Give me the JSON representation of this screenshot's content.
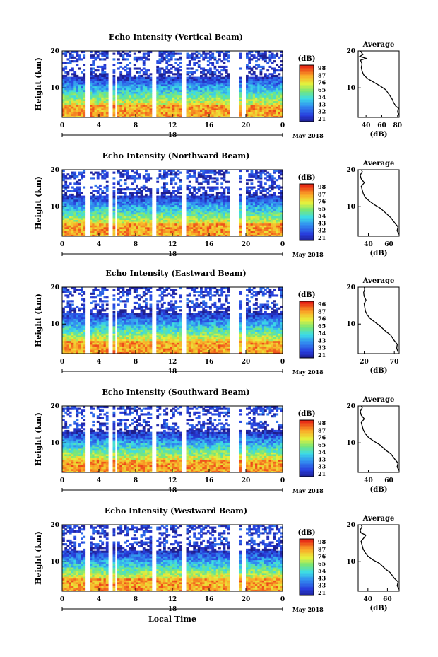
{
  "global": {
    "x_label": "Local Time",
    "date_suffix": "May 2018",
    "cbar_unit": "(dB)",
    "avg_title": "Average",
    "avg_unit": "(dB)",
    "y_label": "Height (km)"
  },
  "chart_data": [
    {
      "type": "heatmap",
      "title": "Echo Intensity (Vertical Beam)",
      "xlabel": "Local Time",
      "ylabel": "Height (km)",
      "x_ticks": [
        "0",
        "4",
        "8",
        "12",
        "16",
        "20",
        "0"
      ],
      "x_range": [
        0,
        24
      ],
      "date_label": "18",
      "y_ticks": [
        "20",
        "10"
      ],
      "y_range": [
        2,
        20
      ],
      "colorbar": {
        "label": "(dB)",
        "ticks": [
          "98",
          "87",
          "76",
          "65",
          "54",
          "43",
          "32",
          "21"
        ]
      },
      "average": {
        "title": "Average",
        "xlabel": "(dB)",
        "x_ticks": [
          "40",
          "60",
          "80"
        ],
        "x_range": [
          30,
          82
        ],
        "profile": [
          [
            82,
            2.5
          ],
          [
            80,
            3.5
          ],
          [
            81,
            4.5
          ],
          [
            78,
            5
          ],
          [
            75,
            6
          ],
          [
            73,
            7
          ],
          [
            70,
            8
          ],
          [
            65,
            9.5
          ],
          [
            58,
            10.5
          ],
          [
            50,
            11.5
          ],
          [
            42,
            12.5
          ],
          [
            37,
            13.5
          ],
          [
            35,
            14.5
          ],
          [
            34,
            15.5
          ],
          [
            35,
            16.5
          ],
          [
            33,
            17.5
          ],
          [
            40,
            18
          ],
          [
            32,
            18.5
          ],
          [
            36,
            19
          ],
          [
            33,
            20
          ]
        ]
      }
    },
    {
      "type": "heatmap",
      "title": "Echo Intensity (Northward Beam)",
      "xlabel": "Local Time",
      "ylabel": "Height (km)",
      "x_ticks": [
        "0",
        "4",
        "8",
        "12",
        "16",
        "20",
        "0"
      ],
      "x_range": [
        0,
        24
      ],
      "date_label": "18",
      "y_ticks": [
        "20",
        "10"
      ],
      "y_range": [
        2,
        20
      ],
      "colorbar": {
        "label": "(dB)",
        "ticks": [
          "98",
          "87",
          "76",
          "65",
          "54",
          "43",
          "32",
          "21"
        ]
      },
      "average": {
        "title": "Average",
        "xlabel": "(dB)",
        "x_ticks": [
          "40",
          "60"
        ],
        "x_range": [
          30,
          70
        ],
        "profile": [
          [
            70,
            2.5
          ],
          [
            68,
            3.5
          ],
          [
            69,
            4.5
          ],
          [
            66,
            5.5
          ],
          [
            62,
            7
          ],
          [
            58,
            8
          ],
          [
            52,
            9.5
          ],
          [
            46,
            10.5
          ],
          [
            41,
            11.5
          ],
          [
            37,
            12.5
          ],
          [
            35,
            13.5
          ],
          [
            34,
            14.5
          ],
          [
            33,
            15.5
          ],
          [
            36,
            16.5
          ],
          [
            33,
            17.5
          ],
          [
            32,
            18.5
          ],
          [
            34,
            19.5
          ],
          [
            33,
            20
          ]
        ]
      }
    },
    {
      "type": "heatmap",
      "title": "Echo Intensity (Eastward Beam)",
      "xlabel": "Local Time",
      "ylabel": "Height (km)",
      "x_ticks": [
        "0",
        "4",
        "8",
        "12",
        "16",
        "20",
        "0"
      ],
      "x_range": [
        0,
        24
      ],
      "date_label": "18",
      "y_ticks": [
        "20",
        "10"
      ],
      "y_range": [
        2,
        20
      ],
      "colorbar": {
        "label": "(dB)",
        "ticks": [
          "96",
          "87",
          "76",
          "65",
          "54",
          "43",
          "33",
          "21"
        ]
      },
      "average": {
        "title": "Average",
        "xlabel": "(dB)",
        "x_ticks": [
          "20",
          "70"
        ],
        "x_range": [
          10,
          78
        ],
        "profile": [
          [
            76,
            2.5
          ],
          [
            74,
            3.5
          ],
          [
            75,
            4.5
          ],
          [
            70,
            5.5
          ],
          [
            64,
            7
          ],
          [
            56,
            8
          ],
          [
            46,
            9.5
          ],
          [
            38,
            10.5
          ],
          [
            30,
            11.5
          ],
          [
            25,
            12.5
          ],
          [
            22,
            13.5
          ],
          [
            21,
            14.5
          ],
          [
            20,
            15.5
          ],
          [
            23,
            16.5
          ],
          [
            20,
            17.5
          ],
          [
            19,
            18.5
          ],
          [
            21,
            19.5
          ],
          [
            20,
            20
          ]
        ]
      }
    },
    {
      "type": "heatmap",
      "title": "Echo Intensity (Southward Beam)",
      "xlabel": "Local Time",
      "ylabel": "Height (km)",
      "x_ticks": [
        "0",
        "4",
        "8",
        "12",
        "16",
        "20",
        "0"
      ],
      "x_range": [
        0,
        24
      ],
      "date_label": "18",
      "y_ticks": [
        "20",
        "10"
      ],
      "y_range": [
        2,
        20
      ],
      "colorbar": {
        "label": "(dB)",
        "ticks": [
          "98",
          "87",
          "76",
          "65",
          "54",
          "43",
          "33",
          "21"
        ]
      },
      "average": {
        "title": "Average",
        "xlabel": "(dB)",
        "x_ticks": [
          "40",
          "60"
        ],
        "x_range": [
          30,
          70
        ],
        "profile": [
          [
            70,
            2.5
          ],
          [
            68,
            3.5
          ],
          [
            69,
            4.5
          ],
          [
            66,
            5.5
          ],
          [
            62,
            7
          ],
          [
            57,
            8
          ],
          [
            51,
            9.5
          ],
          [
            45,
            10.5
          ],
          [
            40,
            11.5
          ],
          [
            37,
            12.5
          ],
          [
            35,
            13.5
          ],
          [
            34,
            14.5
          ],
          [
            33,
            15.5
          ],
          [
            36,
            16.5
          ],
          [
            33,
            17.5
          ],
          [
            32,
            18.5
          ],
          [
            34,
            19.5
          ],
          [
            33,
            20
          ]
        ]
      }
    },
    {
      "type": "heatmap",
      "title": "Echo Intensity (Westward Beam)",
      "xlabel": "Local Time",
      "ylabel": "Height (km)",
      "x_ticks": [
        "0",
        "4",
        "8",
        "12",
        "16",
        "20",
        "0"
      ],
      "x_range": [
        0,
        24
      ],
      "date_label": "18",
      "y_ticks": [
        "20",
        "10"
      ],
      "y_range": [
        2,
        20
      ],
      "colorbar": {
        "label": "(dB)",
        "ticks": [
          "98",
          "87",
          "76",
          "65",
          "54",
          "43",
          "33",
          "21"
        ]
      },
      "average": {
        "title": "Average",
        "xlabel": "(dB)",
        "x_ticks": [
          "40",
          "60"
        ],
        "x_range": [
          30,
          72
        ],
        "profile": [
          [
            72,
            2.5
          ],
          [
            70,
            3.5
          ],
          [
            71,
            4.5
          ],
          [
            67,
            5.5
          ],
          [
            63,
            7
          ],
          [
            58,
            8
          ],
          [
            52,
            9.5
          ],
          [
            45,
            10.5
          ],
          [
            40,
            11.5
          ],
          [
            37,
            12.5
          ],
          [
            35,
            13.5
          ],
          [
            34,
            14.5
          ],
          [
            33,
            15.5
          ],
          [
            36,
            16.5
          ],
          [
            38,
            17.2
          ],
          [
            33,
            17.8
          ],
          [
            32,
            18.5
          ],
          [
            34,
            19.5
          ],
          [
            33,
            20
          ]
        ]
      }
    }
  ]
}
